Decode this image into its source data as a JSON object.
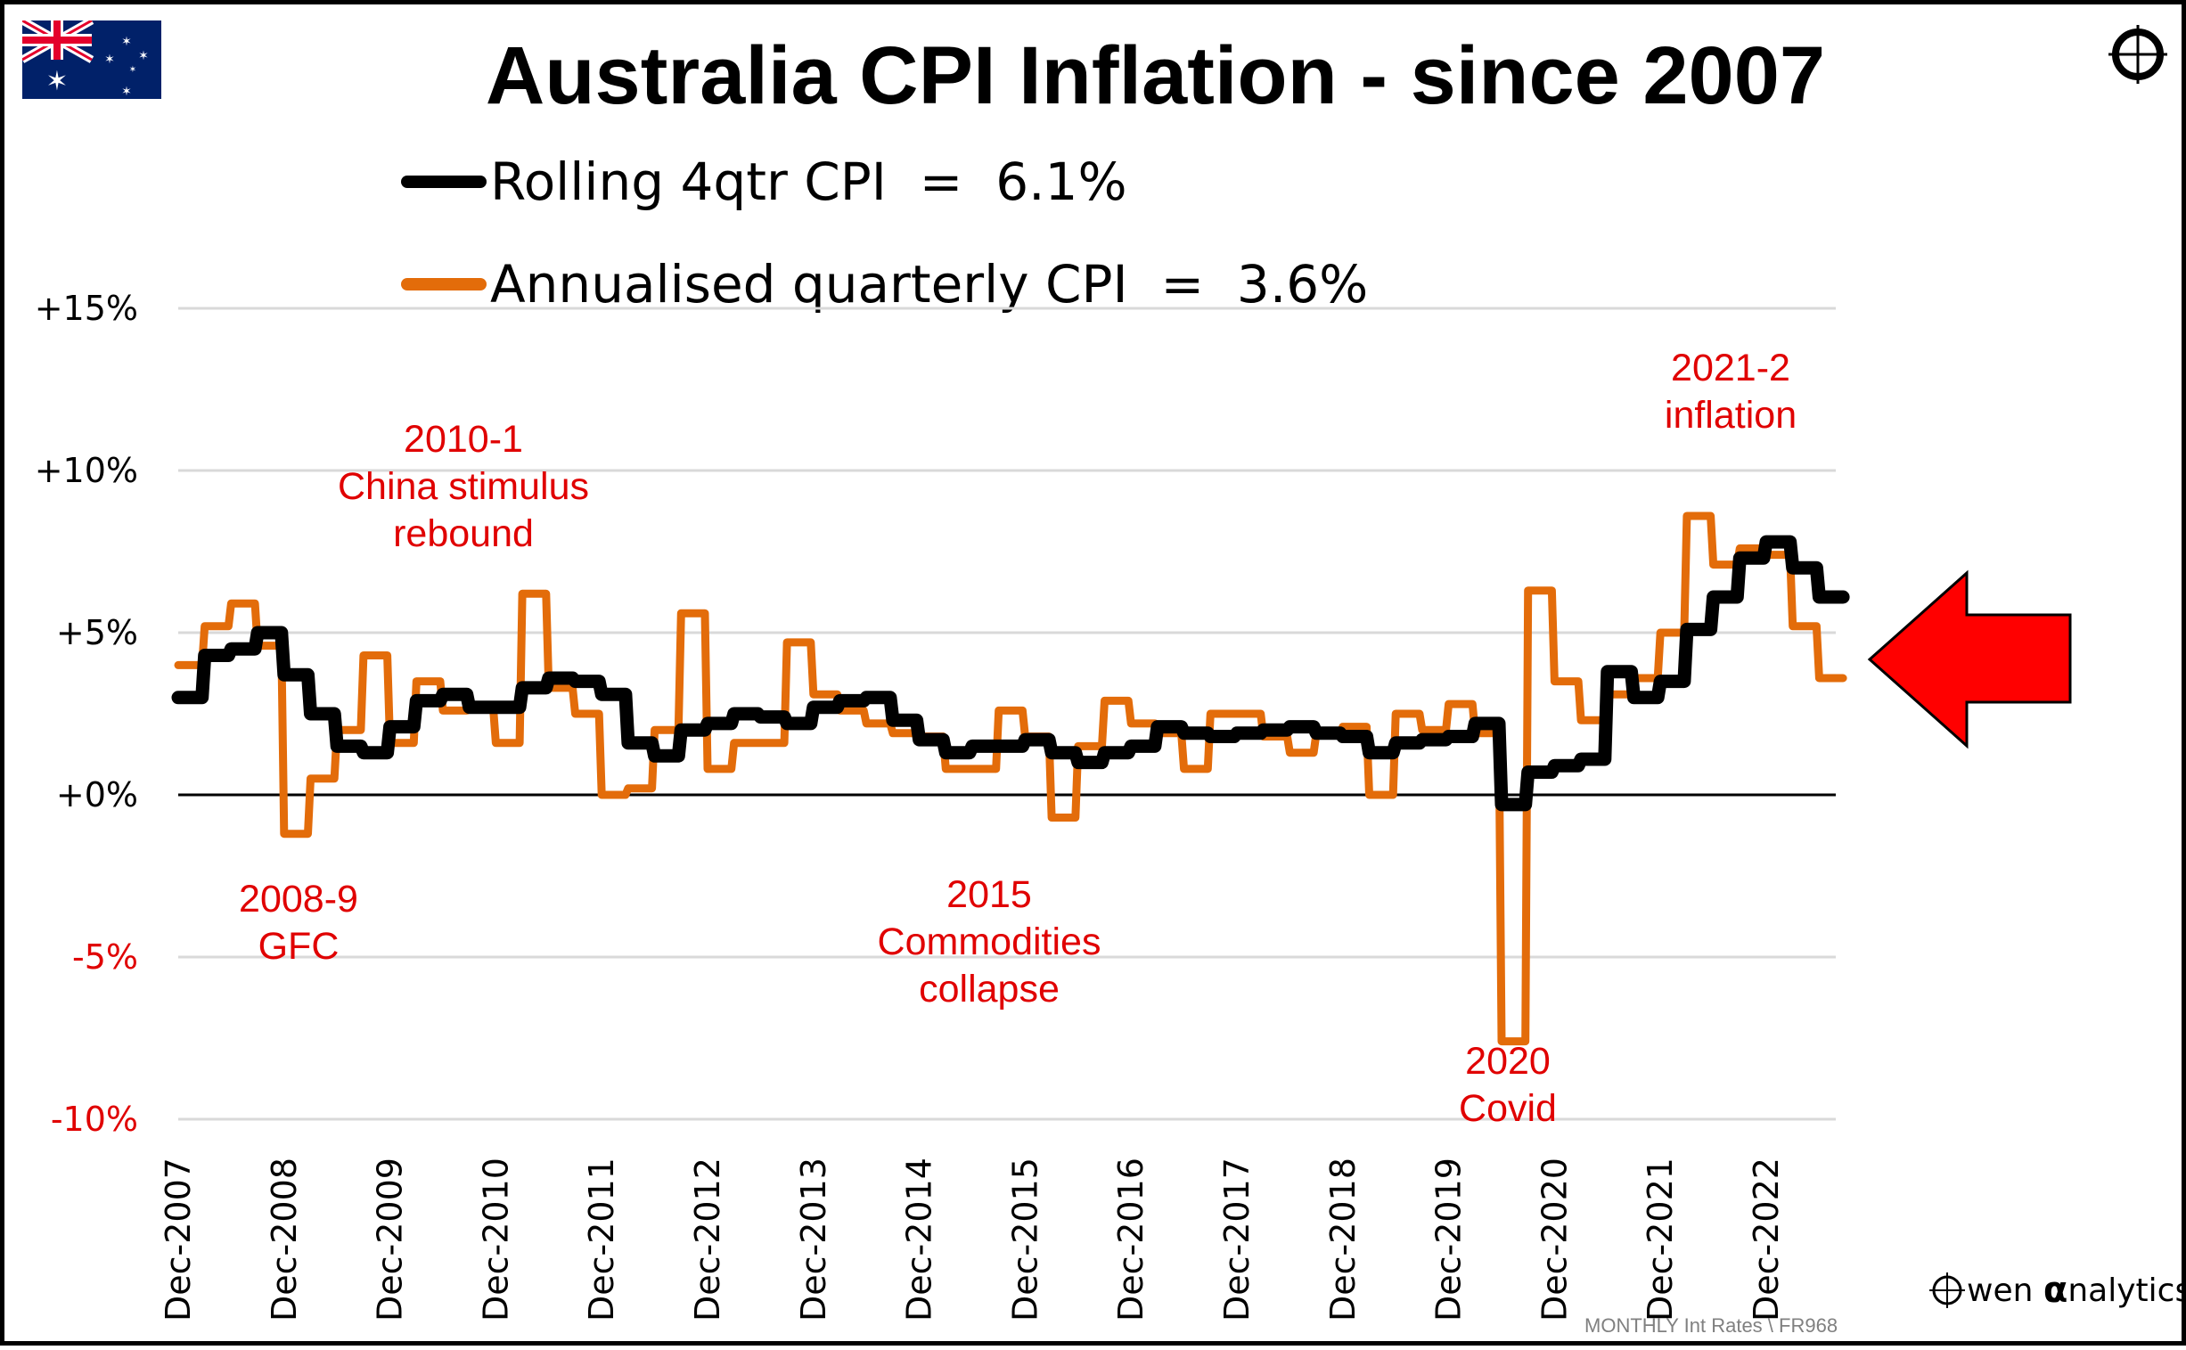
{
  "header": {
    "title": "Australia CPI Inflation - since 2007",
    "flag_icon": "australia-flag-icon",
    "corner_icon": "crosshair-target-icon"
  },
  "legend": [
    {
      "label": "Rolling 4qtr CPI  =  6.1%",
      "color": "#000000"
    },
    {
      "label": "Annualised quarterly CPI  =  3.6%",
      "color": "#e36c0a"
    }
  ],
  "footer": {
    "source": "MONTHLY Int Rates \\ FR968",
    "brand_prefix": "wen ",
    "brand_alpha": "α",
    "brand_suffix": "nalytics"
  },
  "colors": {
    "rolling": "#000000",
    "annualised": "#e36c0a",
    "annotation": "#e00000",
    "arrow": "#ff0000",
    "grid": "#d9d9d9"
  },
  "chart_data": {
    "type": "line",
    "title": "Australia CPI Inflation - since 2007",
    "xlabel": "",
    "ylabel": "",
    "frequency": "quarterly values shown as monthly steps",
    "x_start": "Dec-2007",
    "x_ticks": [
      "Dec-2007",
      "Dec-2008",
      "Dec-2009",
      "Dec-2010",
      "Dec-2011",
      "Dec-2012",
      "Dec-2013",
      "Dec-2014",
      "Dec-2015",
      "Dec-2016",
      "Dec-2017",
      "Dec-2018",
      "Dec-2019",
      "Dec-2020",
      "Dec-2021",
      "Dec-2022"
    ],
    "y_ticks": [
      {
        "value": 15,
        "label": "+15%",
        "color": "#000000"
      },
      {
        "value": 10,
        "label": "+10%",
        "color": "#000000"
      },
      {
        "value": 5,
        "label": "+5%",
        "color": "#000000"
      },
      {
        "value": 0,
        "label": "+0%",
        "color": "#000000"
      },
      {
        "value": -5,
        "label": "-5%",
        "color": "#e00000"
      },
      {
        "value": -10,
        "label": "-10%",
        "color": "#e00000"
      }
    ],
    "ylim": [
      -10,
      15
    ],
    "grid": true,
    "legend_position": "top",
    "quarter_labels": [
      "Dec-2007",
      "Mar-2008",
      "Jun-2008",
      "Sep-2008",
      "Dec-2008",
      "Mar-2009",
      "Jun-2009",
      "Sep-2009",
      "Dec-2009",
      "Mar-2010",
      "Jun-2010",
      "Sep-2010",
      "Dec-2010",
      "Mar-2011",
      "Jun-2011",
      "Sep-2011",
      "Dec-2011",
      "Mar-2012",
      "Jun-2012",
      "Sep-2012",
      "Dec-2012",
      "Mar-2013",
      "Jun-2013",
      "Sep-2013",
      "Dec-2013",
      "Mar-2014",
      "Jun-2014",
      "Sep-2014",
      "Dec-2014",
      "Mar-2015",
      "Jun-2015",
      "Sep-2015",
      "Dec-2015",
      "Mar-2016",
      "Jun-2016",
      "Sep-2016",
      "Dec-2016",
      "Mar-2017",
      "Jun-2017",
      "Sep-2017",
      "Dec-2017",
      "Mar-2018",
      "Jun-2018",
      "Sep-2018",
      "Dec-2018",
      "Mar-2019",
      "Jun-2019",
      "Sep-2019",
      "Dec-2019",
      "Mar-2020",
      "Jun-2020",
      "Sep-2020",
      "Dec-2020",
      "Mar-2021",
      "Jun-2021",
      "Sep-2021",
      "Dec-2021",
      "Mar-2022",
      "Jun-2022",
      "Sep-2022",
      "Dec-2022",
      "Mar-2023",
      "Jun-2023"
    ],
    "series": [
      {
        "name": "Rolling 4qtr CPI",
        "color": "#000000",
        "values": [
          3.0,
          4.3,
          4.5,
          5.0,
          3.7,
          2.5,
          1.5,
          1.3,
          2.1,
          2.9,
          3.1,
          2.7,
          2.7,
          3.3,
          3.6,
          3.5,
          3.1,
          1.6,
          1.2,
          2.0,
          2.2,
          2.5,
          2.4,
          2.2,
          2.7,
          2.9,
          3.0,
          2.3,
          1.7,
          1.3,
          1.5,
          1.5,
          1.7,
          1.3,
          1.0,
          1.3,
          1.5,
          2.1,
          1.9,
          1.8,
          1.9,
          2.0,
          2.1,
          1.9,
          1.8,
          1.3,
          1.6,
          1.7,
          1.8,
          2.2,
          -0.3,
          0.7,
          0.9,
          1.1,
          3.8,
          3.0,
          3.5,
          5.1,
          6.1,
          7.3,
          7.8,
          7.0,
          6.1
        ]
      },
      {
        "name": "Annualised quarterly CPI",
        "color": "#e36c0a",
        "values": [
          4.0,
          5.2,
          5.9,
          4.6,
          -1.2,
          0.5,
          2.0,
          4.3,
          1.6,
          3.5,
          2.6,
          2.7,
          1.6,
          6.2,
          3.3,
          2.5,
          0.0,
          0.2,
          2.0,
          5.6,
          0.8,
          1.6,
          1.6,
          4.7,
          3.1,
          2.6,
          2.2,
          1.9,
          1.8,
          0.8,
          0.8,
          2.6,
          1.8,
          -0.7,
          1.5,
          2.9,
          2.2,
          1.9,
          0.8,
          2.5,
          2.5,
          1.8,
          1.3,
          1.9,
          2.1,
          0.0,
          2.5,
          2.0,
          2.8,
          1.9,
          -7.6,
          6.3,
          3.5,
          2.3,
          3.1,
          3.6,
          5.0,
          8.6,
          7.1,
          7.6,
          7.4,
          5.2,
          3.6
        ]
      }
    ],
    "annotations": [
      {
        "lines": [
          "2008-9",
          "GFC"
        ],
        "near": "Dec-2008"
      },
      {
        "lines": [
          "2010-1",
          "China stimulus",
          "rebound"
        ],
        "near": "Dec-2010"
      },
      {
        "lines": [
          "2015",
          "Commodities",
          "collapse"
        ],
        "near": "Dec-2015"
      },
      {
        "lines": [
          "2020",
          "Covid"
        ],
        "near": "Jun-2020"
      },
      {
        "lines": [
          "2021-2",
          "inflation"
        ],
        "near": "Dec-2021"
      }
    ],
    "callout": "red left-pointing arrow marking latest values"
  }
}
